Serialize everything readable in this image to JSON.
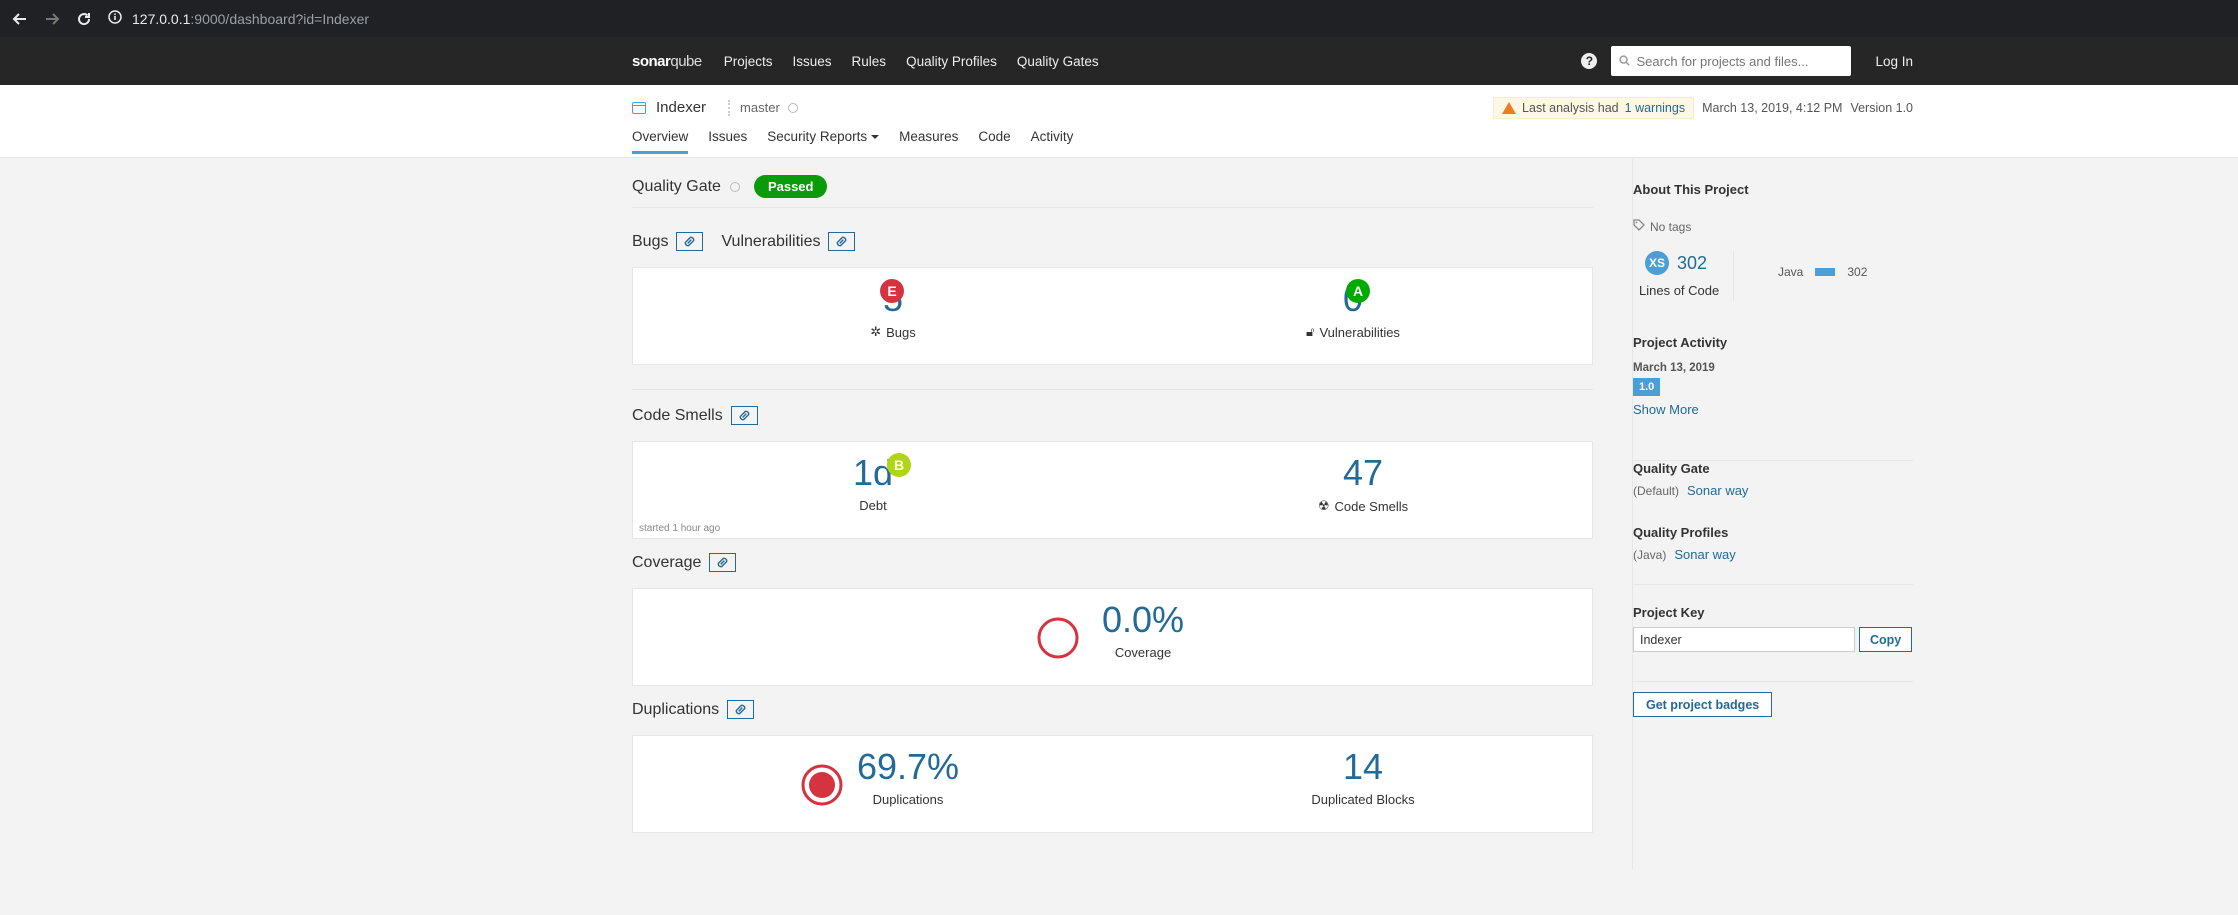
{
  "browser": {
    "url_host": "127.0.0.1",
    "url_rest": ":9000/dashboard?id=Indexer"
  },
  "topnav": {
    "logo_main": "sonar",
    "logo_sub": "qube",
    "links": [
      "Projects",
      "Issues",
      "Rules",
      "Quality Profiles",
      "Quality Gates"
    ],
    "search_placeholder": "Search for projects and files...",
    "login": "Log In"
  },
  "project": {
    "name": "Indexer",
    "branch": "master",
    "warning_prefix": "Last analysis had",
    "warning_link": "1 warnings",
    "date": "March 13, 2019, 4:12 PM",
    "version": "Version 1.0",
    "tabs": [
      "Overview",
      "Issues",
      "Security Reports",
      "Measures",
      "Code",
      "Activity"
    ]
  },
  "quality_gate": {
    "title": "Quality Gate",
    "status": "Passed"
  },
  "sections": {
    "bugs": "Bugs",
    "vulnerabilities": "Vulnerabilities",
    "code_smells": "Code Smells",
    "coverage": "Coverage",
    "duplications": "Duplications"
  },
  "measures": {
    "bugs": {
      "value": "5",
      "rating": "E",
      "label": "Bugs"
    },
    "vulnerabilities": {
      "value": "0",
      "rating": "A",
      "label": "Vulnerabilities"
    },
    "debt": {
      "value": "1d",
      "rating": "B",
      "label": "Debt"
    },
    "code_smells": {
      "value": "47",
      "label": "Code Smells"
    },
    "started_note": "started 1 hour ago",
    "coverage": {
      "value": "0.0%",
      "label": "Coverage"
    },
    "duplications": {
      "value": "69.7%",
      "label": "Duplications"
    },
    "duplicated_blocks": {
      "value": "14",
      "label": "Duplicated Blocks"
    }
  },
  "colors": {
    "rating_E": "#d4333f",
    "rating_A": "#00aa00",
    "rating_B": "#b0d513",
    "passed": "#0a9b0a",
    "link": "#236a97",
    "accent": "#4b9fd5"
  },
  "sidebar": {
    "about_title": "About This Project",
    "tags": "No tags",
    "size_badge": "XS",
    "loc": "302",
    "loc_label": "Lines of Code",
    "lang_name": "Java",
    "lang_loc": "302",
    "activity_title": "Project Activity",
    "activity_date": "March 13, 2019",
    "activity_version": "1.0",
    "show_more": "Show More",
    "qg_title": "Quality Gate",
    "qg_default": "(Default)",
    "qg_link": "Sonar way",
    "qp_title": "Quality Profiles",
    "qp_lang": "(Java)",
    "qp_link": "Sonar way",
    "key_title": "Project Key",
    "key_value": "Indexer",
    "copy": "Copy",
    "badges": "Get project badges"
  }
}
